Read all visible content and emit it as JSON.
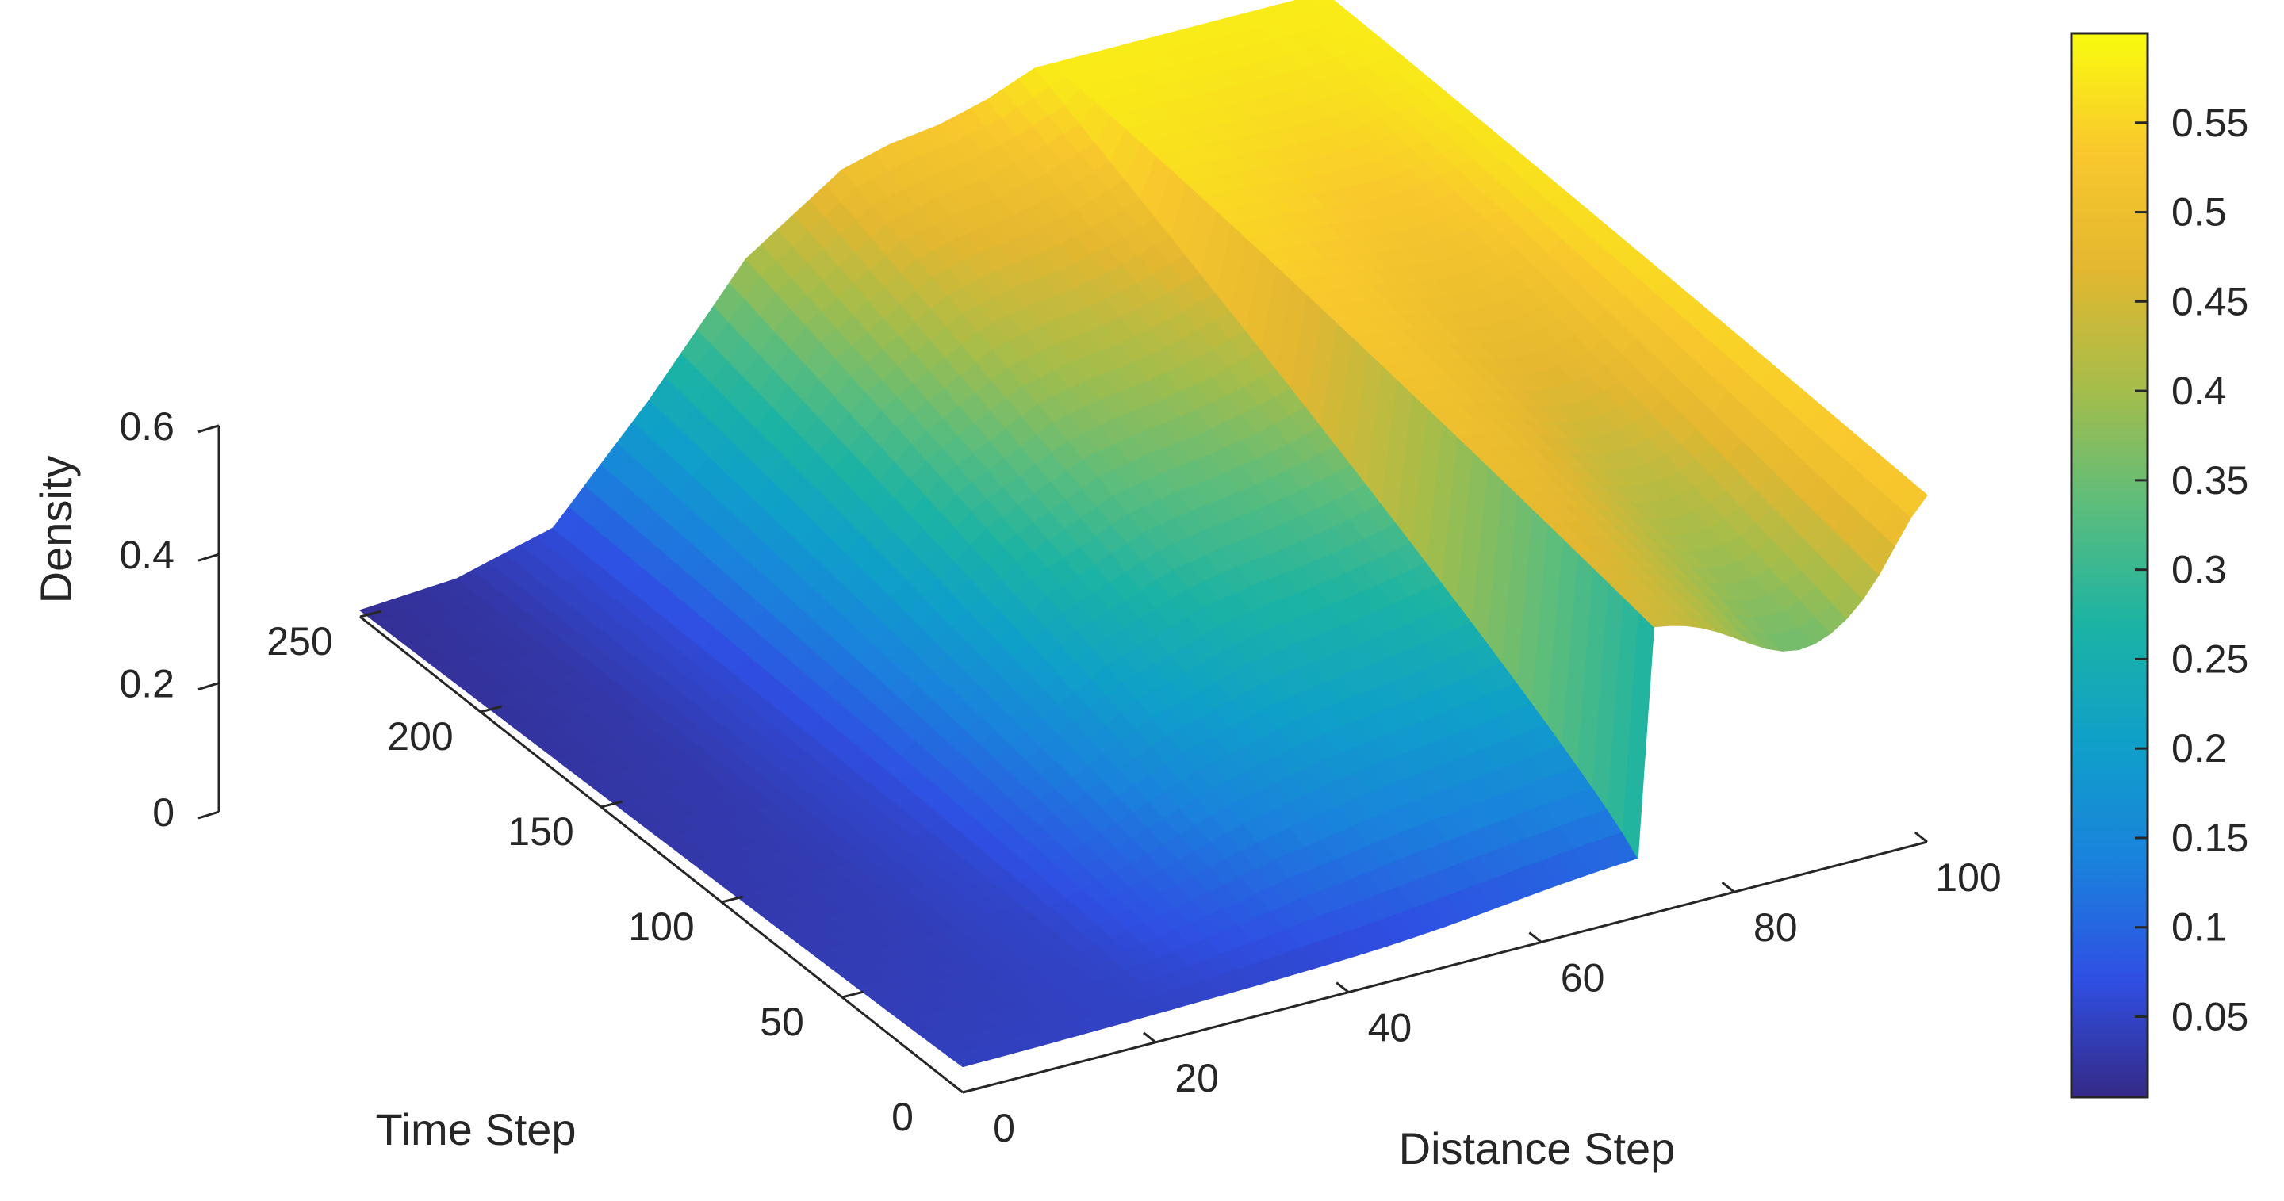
{
  "chart_data": {
    "type": "surface",
    "xlabel": "Distance Step",
    "ylabel": "Time Step",
    "zlabel": "Density",
    "xlim": [
      0,
      100
    ],
    "ylim": [
      0,
      250
    ],
    "zlim": [
      0,
      0.6
    ],
    "x_ticks": [
      0,
      20,
      40,
      60,
      80,
      100
    ],
    "y_ticks": [
      0,
      50,
      100,
      150,
      200,
      250
    ],
    "z_ticks": [
      0,
      0.2,
      0.4,
      0.6
    ],
    "x_tick_labels": [
      "0",
      "20",
      "40",
      "60",
      "80",
      "100"
    ],
    "y_tick_labels": [
      "0",
      "50",
      "100",
      "150",
      "200",
      "250"
    ],
    "z_tick_labels": [
      "0",
      "0.2",
      "0.4",
      "0.6"
    ],
    "colormap": "parula",
    "colorbar": {
      "range": [
        0.005,
        0.6
      ],
      "ticks": [
        0.05,
        0.1,
        0.15,
        0.2,
        0.25,
        0.3,
        0.35,
        0.4,
        0.45,
        0.5,
        0.55
      ],
      "tick_labels": [
        "0.05",
        "0.1",
        "0.15",
        "0.2",
        "0.25",
        "0.3",
        "0.35",
        "0.4",
        "0.45",
        "0.5",
        "0.55"
      ],
      "placement": "right"
    },
    "surface_profiles": {
      "x": [
        0,
        10,
        20,
        30,
        40,
        50,
        55,
        60,
        65,
        70,
        75,
        80,
        85,
        90,
        95,
        100
      ],
      "density_at_time_0": [
        0.01,
        0.02,
        0.03,
        0.05,
        0.07,
        0.09,
        0.11,
        0.12,
        0.14,
        0.15,
        0.45,
        0.44,
        0.43,
        0.43,
        0.44,
        0.57
      ],
      "density_at_time_250": [
        0.01,
        0.02,
        0.06,
        0.22,
        0.4,
        0.5,
        0.52,
        0.53,
        0.55,
        0.58,
        0.6,
        0.59,
        0.58,
        0.58,
        0.58,
        0.57
      ]
    },
    "grid": false,
    "legend": false
  },
  "colors": {
    "parula_stops": [
      "#352a87",
      "#2f4fe3",
      "#1a82dc",
      "#0fa0c9",
      "#1bb3a4",
      "#5cbd7c",
      "#a6bd4a",
      "#e3b730",
      "#f9c82d",
      "#f9fb0e"
    ]
  }
}
